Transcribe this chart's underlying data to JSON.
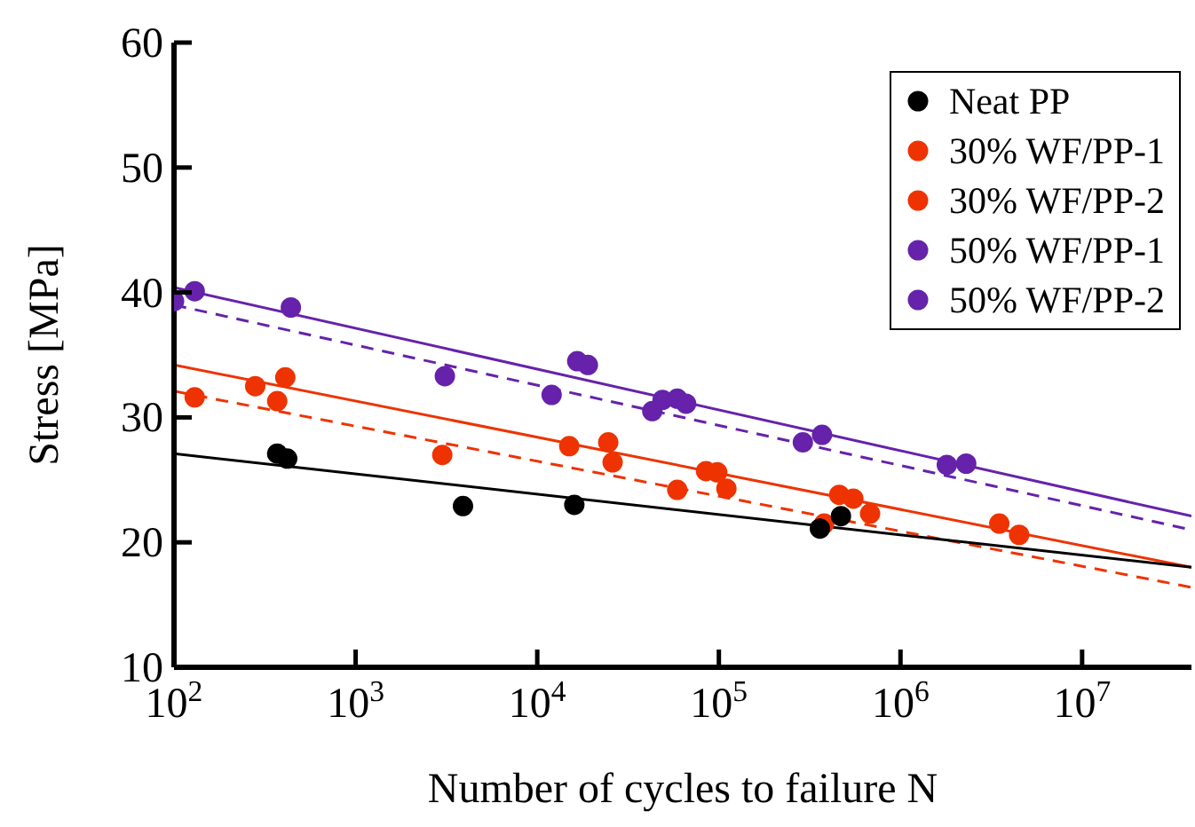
{
  "chart_data": {
    "type": "scatter",
    "xlabel": "Number of cycles to failure N",
    "ylabel": "Stress  [MPa]",
    "log": "x",
    "xlim": [
      100,
      40000000
    ],
    "xticks": [
      {
        "value": 100,
        "label": "10$^{2}$"
      },
      {
        "value": 1000,
        "label": "10$^{3}$"
      },
      {
        "value": 10000,
        "label": "10$^{4}$"
      },
      {
        "value": 100000,
        "label": "10$^{5}$"
      },
      {
        "value": 1000000,
        "label": "10$^{6}$"
      },
      {
        "value": 10000000,
        "label": "10$^{7}$"
      }
    ],
    "ylim": [
      10,
      60
    ],
    "yticks": [
      10,
      20,
      30,
      40,
      50,
      60
    ],
    "legend": "top right",
    "marker": "circle",
    "series": [
      {
        "name": "Neat PP",
        "color": "#000000",
        "x": [
          370,
          420,
          3900,
          16000,
          360000,
          470000
        ],
        "values": [
          27.1,
          26.7,
          22.9,
          23.0,
          21.1,
          22.1
        ]
      },
      {
        "name": "30% WF/PP-1",
        "color": "#ee3300",
        "x": [
          130,
          370,
          3000,
          26000,
          59000,
          110000,
          380000,
          680000
        ],
        "values": [
          31.6,
          31.3,
          27.0,
          26.4,
          24.2,
          24.3,
          21.5,
          22.3
        ]
      },
      {
        "name": "30% WF/PP-2",
        "color": "#ee3300",
        "x": [
          280,
          410,
          15000,
          24600,
          85000,
          98000,
          460000,
          550000,
          3500000,
          4500000
        ],
        "values": [
          32.5,
          33.2,
          27.7,
          28.0,
          25.7,
          25.6,
          23.8,
          23.5,
          21.5,
          20.6
        ]
      },
      {
        "name": "50% WF/PP-1",
        "color": "#6622aa",
        "x": [
          100,
          440,
          3100,
          12000,
          43000,
          66000,
          290000
        ],
        "values": [
          39.3,
          38.8,
          33.3,
          31.8,
          30.5,
          31.1,
          28.0
        ]
      },
      {
        "name": "50% WF/PP-2",
        "color": "#6622aa",
        "x": [
          130,
          16600,
          19000,
          49000,
          59000,
          370000,
          1800000,
          2300000
        ],
        "values": [
          40.1,
          34.5,
          34.2,
          31.4,
          31.5,
          28.6,
          26.2,
          26.3
        ]
      },
      {
        "type": "line",
        "color": "#000000",
        "line_style": "solid",
        "marker": "none",
        "x": [
          100,
          40000000
        ],
        "values": [
          27.1,
          18.0
        ]
      },
      {
        "type": "line",
        "color": "#ee3300",
        "line_style": "dashed",
        "marker": "none",
        "x": [
          100,
          40000000
        ],
        "values": [
          32.1,
          16.4
        ]
      },
      {
        "type": "line",
        "color": "#ee3300",
        "line_style": "solid",
        "marker": "none",
        "x": [
          100,
          40000000
        ],
        "values": [
          34.2,
          18.0
        ]
      },
      {
        "type": "line",
        "color": "#6622aa",
        "line_style": "dashed",
        "marker": "none",
        "x": [
          100,
          40000000
        ],
        "values": [
          39.0,
          21.0
        ]
      },
      {
        "type": "line",
        "color": "#6622aa",
        "line_style": "solid",
        "marker": "none",
        "x": [
          100,
          40000000
        ],
        "values": [
          40.4,
          22.1
        ]
      }
    ]
  }
}
